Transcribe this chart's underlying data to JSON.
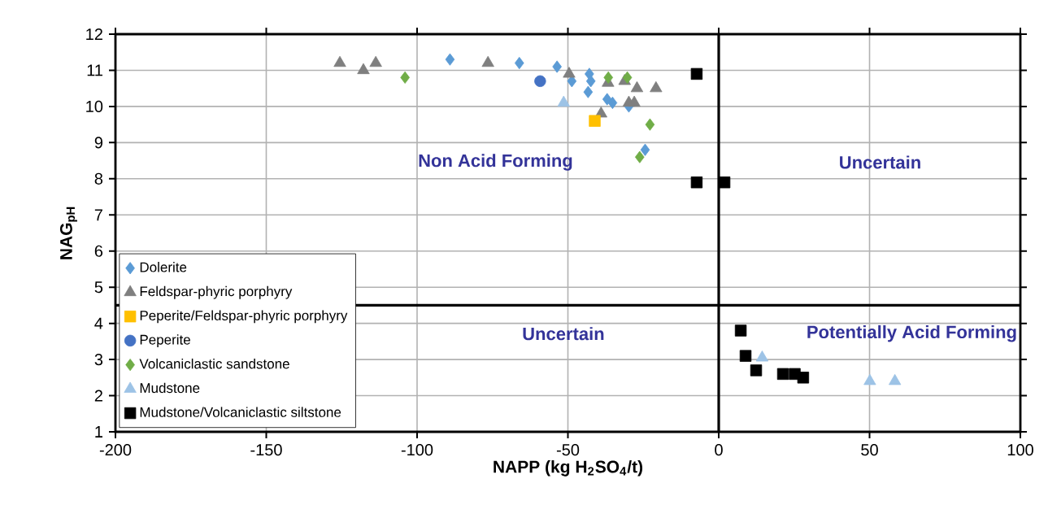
{
  "chart_data": {
    "type": "scatter",
    "xlabel": "NAPP (kg H$_{2}$SO$_{4}$/t)",
    "ylabel": "NAG$_{pH}$",
    "xlim": [
      -200,
      100
    ],
    "ylim": [
      1,
      12
    ],
    "xticks": [
      -200,
      -150,
      -100,
      -50,
      0,
      50,
      100
    ],
    "yticks": [
      1,
      2,
      3,
      4,
      5,
      6,
      7,
      8,
      9,
      10,
      11,
      12
    ],
    "grid": true,
    "legend": "bottom left",
    "series": [
      {
        "name": "Dolerite",
        "color": "#5b9bd5",
        "marker": "diamond",
        "x": [
          -89.1,
          -66.1,
          -53.6,
          -48.7,
          -42.9,
          -42.4,
          -43.3,
          -37.0,
          -35.2,
          -29.8,
          -29.4,
          -24.4
        ],
        "values": [
          11.3,
          11.2,
          11.1,
          10.7,
          10.9,
          10.7,
          10.4,
          10.2,
          10.1,
          10.0,
          null,
          8.8
        ]
      },
      {
        "name": "Feldspar-phyric porphyry",
        "color": "#7f7f7f",
        "marker": "triangle",
        "x": [
          -125.6,
          -117.8,
          -113.7,
          -76.5,
          -49.6,
          -36.8,
          -36.7,
          -31.2,
          -27.1,
          -20.8,
          -29.8,
          -28.0,
          -39.0
        ],
        "values": [
          11.2,
          11.0,
          11.2,
          11.2,
          10.9,
          null,
          10.65,
          10.7,
          10.5,
          10.5,
          10.1,
          10.1,
          9.8
        ]
      },
      {
        "name": "Peperite/Feldspar-phyric porphyry",
        "color": "#ffc000",
        "marker": "square",
        "x": [
          -41.1
        ],
        "values": [
          9.6
        ]
      },
      {
        "name": "Peperite",
        "color": "#4472c4",
        "marker": "circle",
        "x": [
          -59.2
        ],
        "values": [
          10.7
        ]
      },
      {
        "name": "Volcaniclastic sandstone",
        "color": "#70ad47",
        "marker": "diamond",
        "x": [
          -104.0,
          -36.6,
          -30.3,
          -22.8,
          -26.2
        ],
        "values": [
          10.8,
          10.8,
          10.8,
          9.5,
          8.6
        ]
      },
      {
        "name": "Mudstone",
        "color": "#9dc3e6",
        "marker": "triangle",
        "x": [
          -51.4,
          14.4,
          50.1,
          58.4
        ],
        "values": [
          10.1,
          3.05,
          2.4,
          2.4
        ]
      },
      {
        "name": "Mudstone/Volcaniclastic siltstone",
        "color": "#000000",
        "marker": "square",
        "x": [
          -7.3,
          -7.3,
          1.9,
          7.3,
          8.9,
          12.4,
          21.3,
          25.2,
          28.0
        ],
        "values": [
          10.9,
          7.9,
          7.9,
          3.8,
          3.1,
          2.7,
          2.6,
          2.6,
          2.5
        ]
      }
    ],
    "ref_lines": [
      {
        "axis": "x",
        "value": 0,
        "color": "#000000"
      },
      {
        "axis": "y",
        "value": 4.5,
        "color": "#000000"
      }
    ],
    "annotations": [
      "Non Acid Forming",
      "Uncertain",
      "Uncertain",
      "Potentially Acid Forming"
    ]
  }
}
